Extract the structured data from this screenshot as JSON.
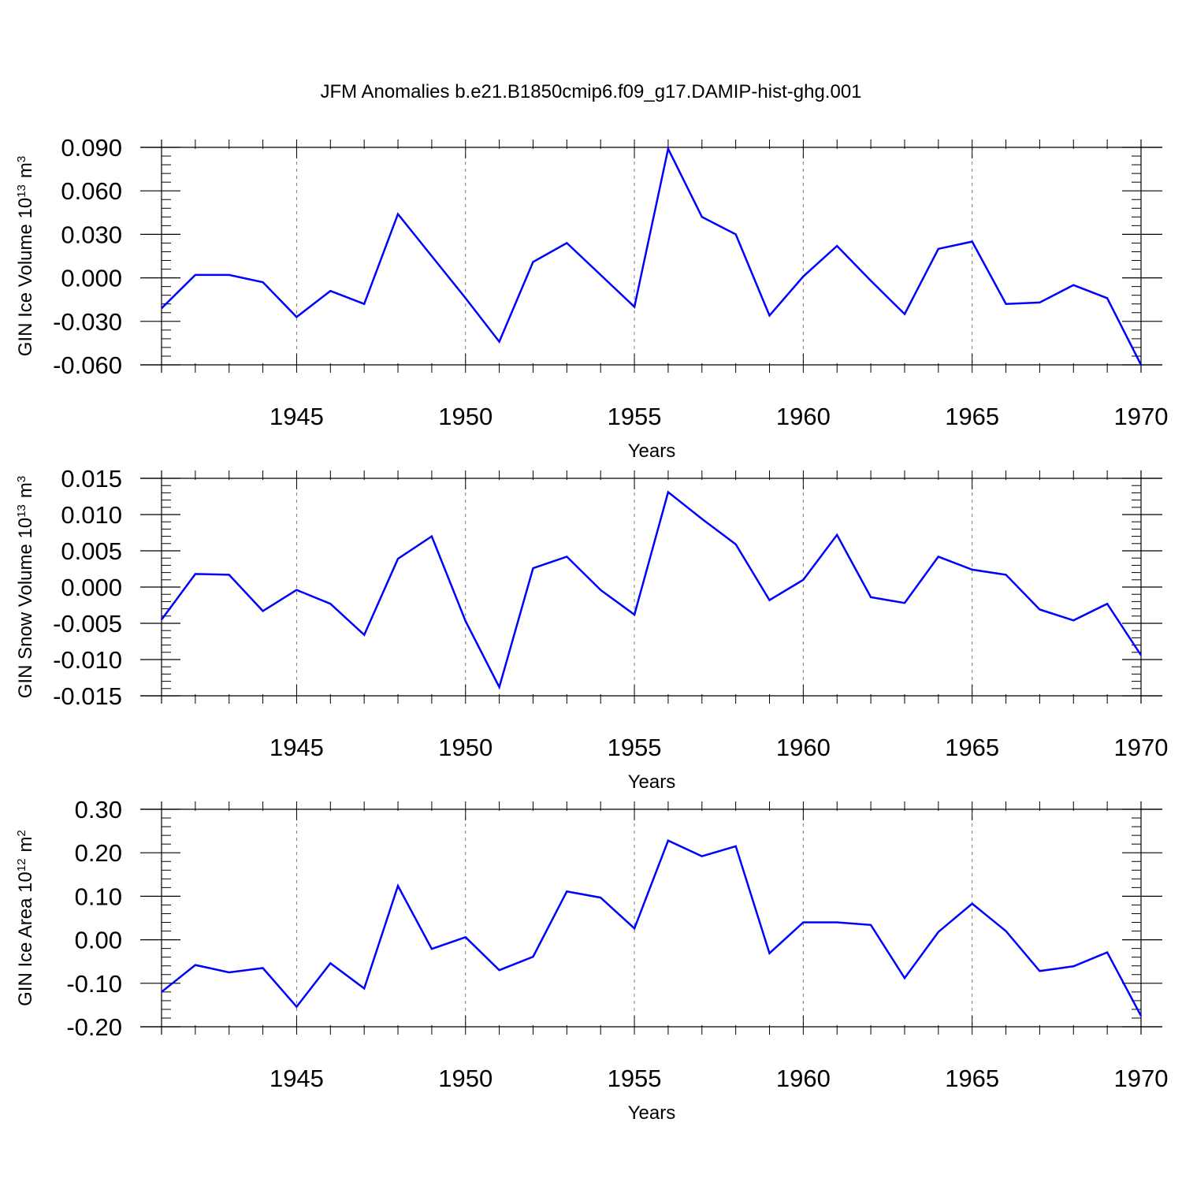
{
  "title": "JFM Anomalies b.e21.B1850cmip6.f09_g17.DAMIP-hist-ghg.001",
  "line_color": "#0000ff",
  "chart_data": [
    {
      "type": "line",
      "ylabel": "GIN Ice Volume 10",
      "ylabel_sup_exp": "13",
      "ylabel_unit": "m",
      "ylabel_unit_sup": "3",
      "xlabel": "Years",
      "xlim": [
        1941,
        1970
      ],
      "ylim": [
        -0.06,
        0.09
      ],
      "yticks": [
        0.09,
        0.06,
        0.03,
        0.0,
        -0.03,
        -0.06
      ],
      "ytick_labels": [
        "0.090",
        "0.060",
        "0.030",
        "0.000",
        "-0.030",
        "-0.060"
      ],
      "xticks": [
        1945,
        1950,
        1955,
        1960,
        1965,
        1970
      ],
      "xtick_labels": [
        "1945",
        "1950",
        "1955",
        "1960",
        "1965",
        "1970"
      ],
      "x": [
        1941,
        1942,
        1943,
        1944,
        1945,
        1946,
        1947,
        1948,
        1949,
        1950,
        1951,
        1952,
        1953,
        1954,
        1955,
        1956,
        1957,
        1958,
        1959,
        1960,
        1961,
        1962,
        1963,
        1964,
        1965,
        1966,
        1967,
        1968,
        1969,
        1970
      ],
      "values": [
        -0.021,
        0.002,
        0.002,
        -0.003,
        -0.027,
        -0.009,
        -0.018,
        0.044,
        0.015,
        -0.014,
        -0.044,
        0.011,
        0.024,
        0.002,
        -0.02,
        0.089,
        0.042,
        0.03,
        -0.026,
        0.001,
        0.022,
        -0.002,
        -0.025,
        0.02,
        0.025,
        -0.018,
        -0.017,
        -0.005,
        -0.014,
        -0.06
      ]
    },
    {
      "type": "line",
      "ylabel": "GIN Snow Volume 10",
      "ylabel_sup_exp": "13",
      "ylabel_unit": "m",
      "ylabel_unit_sup": "3",
      "xlabel": "Years",
      "xlim": [
        1941,
        1970
      ],
      "ylim": [
        -0.015,
        0.015
      ],
      "yticks": [
        0.015,
        0.01,
        0.005,
        0.0,
        -0.005,
        -0.01,
        -0.015
      ],
      "ytick_labels": [
        "0.015",
        "0.010",
        "0.005",
        "0.000",
        "-0.005",
        "-0.010",
        "-0.015"
      ],
      "xticks": [
        1945,
        1950,
        1955,
        1960,
        1965,
        1970
      ],
      "xtick_labels": [
        "1945",
        "1950",
        "1955",
        "1960",
        "1965",
        "1970"
      ],
      "x": [
        1941,
        1942,
        1943,
        1944,
        1945,
        1946,
        1947,
        1948,
        1949,
        1950,
        1951,
        1952,
        1953,
        1954,
        1955,
        1956,
        1957,
        1958,
        1959,
        1960,
        1961,
        1962,
        1963,
        1964,
        1965,
        1966,
        1967,
        1968,
        1969,
        1970
      ],
      "values": [
        -0.0045,
        0.0018,
        0.0017,
        -0.0033,
        -0.0004,
        -0.0023,
        -0.0066,
        0.0039,
        0.007,
        -0.0047,
        -0.0138,
        0.0026,
        0.0042,
        -0.0004,
        -0.0038,
        0.0131,
        0.0094,
        0.0059,
        -0.0018,
        0.001,
        0.0072,
        -0.0014,
        -0.0022,
        0.0042,
        0.0024,
        0.0017,
        -0.0031,
        -0.0046,
        -0.0023,
        -0.0094
      ]
    },
    {
      "type": "line",
      "ylabel": "GIN Ice Area 10",
      "ylabel_sup_exp": "12",
      "ylabel_unit": "m",
      "ylabel_unit_sup": "2",
      "xlabel": "Years",
      "xlim": [
        1941,
        1970
      ],
      "ylim": [
        -0.2,
        0.3
      ],
      "yticks": [
        0.3,
        0.2,
        0.1,
        0.0,
        -0.1,
        -0.2
      ],
      "ytick_labels": [
        "0.30",
        "0.20",
        "0.10",
        "0.00",
        "-0.10",
        "-0.20"
      ],
      "xticks": [
        1945,
        1950,
        1955,
        1960,
        1965,
        1970
      ],
      "xtick_labels": [
        "1945",
        "1950",
        "1955",
        "1960",
        "1965",
        "1970"
      ],
      "x": [
        1941,
        1942,
        1943,
        1944,
        1945,
        1946,
        1947,
        1948,
        1949,
        1950,
        1951,
        1952,
        1953,
        1954,
        1955,
        1956,
        1957,
        1958,
        1959,
        1960,
        1961,
        1962,
        1963,
        1964,
        1965,
        1966,
        1967,
        1968,
        1969,
        1970
      ],
      "values": [
        -0.12,
        -0.058,
        -0.075,
        -0.065,
        -0.154,
        -0.054,
        -0.112,
        0.124,
        -0.021,
        0.006,
        -0.07,
        -0.039,
        0.111,
        0.097,
        0.026,
        0.228,
        0.192,
        0.215,
        -0.031,
        0.04,
        0.04,
        0.034,
        -0.088,
        0.018,
        0.083,
        0.02,
        -0.072,
        -0.061,
        -0.029,
        -0.175
      ]
    }
  ]
}
